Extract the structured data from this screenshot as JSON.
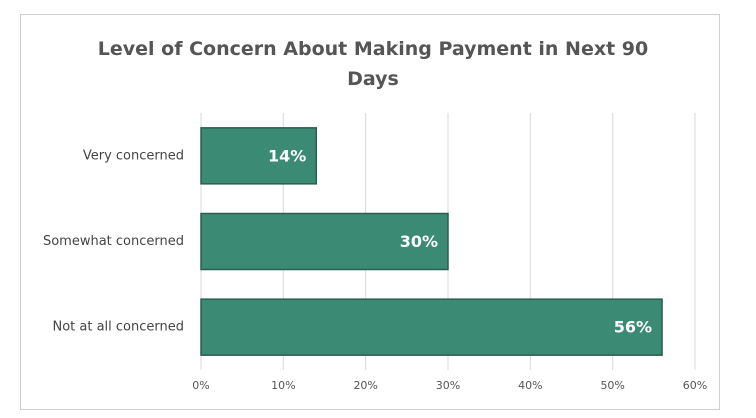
{
  "chart_data": {
    "type": "bar",
    "orientation": "horizontal",
    "title": "Level of Concern About Making Payment in Next 90 Days",
    "categories": [
      "Very concerned",
      "Somewhat concerned",
      "Not at all concerned"
    ],
    "values": [
      14,
      30,
      56
    ],
    "value_labels": [
      "14%",
      "30%",
      "56%"
    ],
    "color": "#3b8a74",
    "xlim": [
      0,
      60
    ],
    "xticks": [
      {
        "value": 0,
        "label": "0%"
      },
      {
        "value": 10,
        "label": "10%"
      },
      {
        "value": 20,
        "label": "20%"
      },
      {
        "value": 30,
        "label": "30%"
      },
      {
        "value": 40,
        "label": "40%"
      },
      {
        "value": 50,
        "label": "50%"
      },
      {
        "value": 60,
        "label": "60%"
      }
    ],
    "grid": true
  }
}
